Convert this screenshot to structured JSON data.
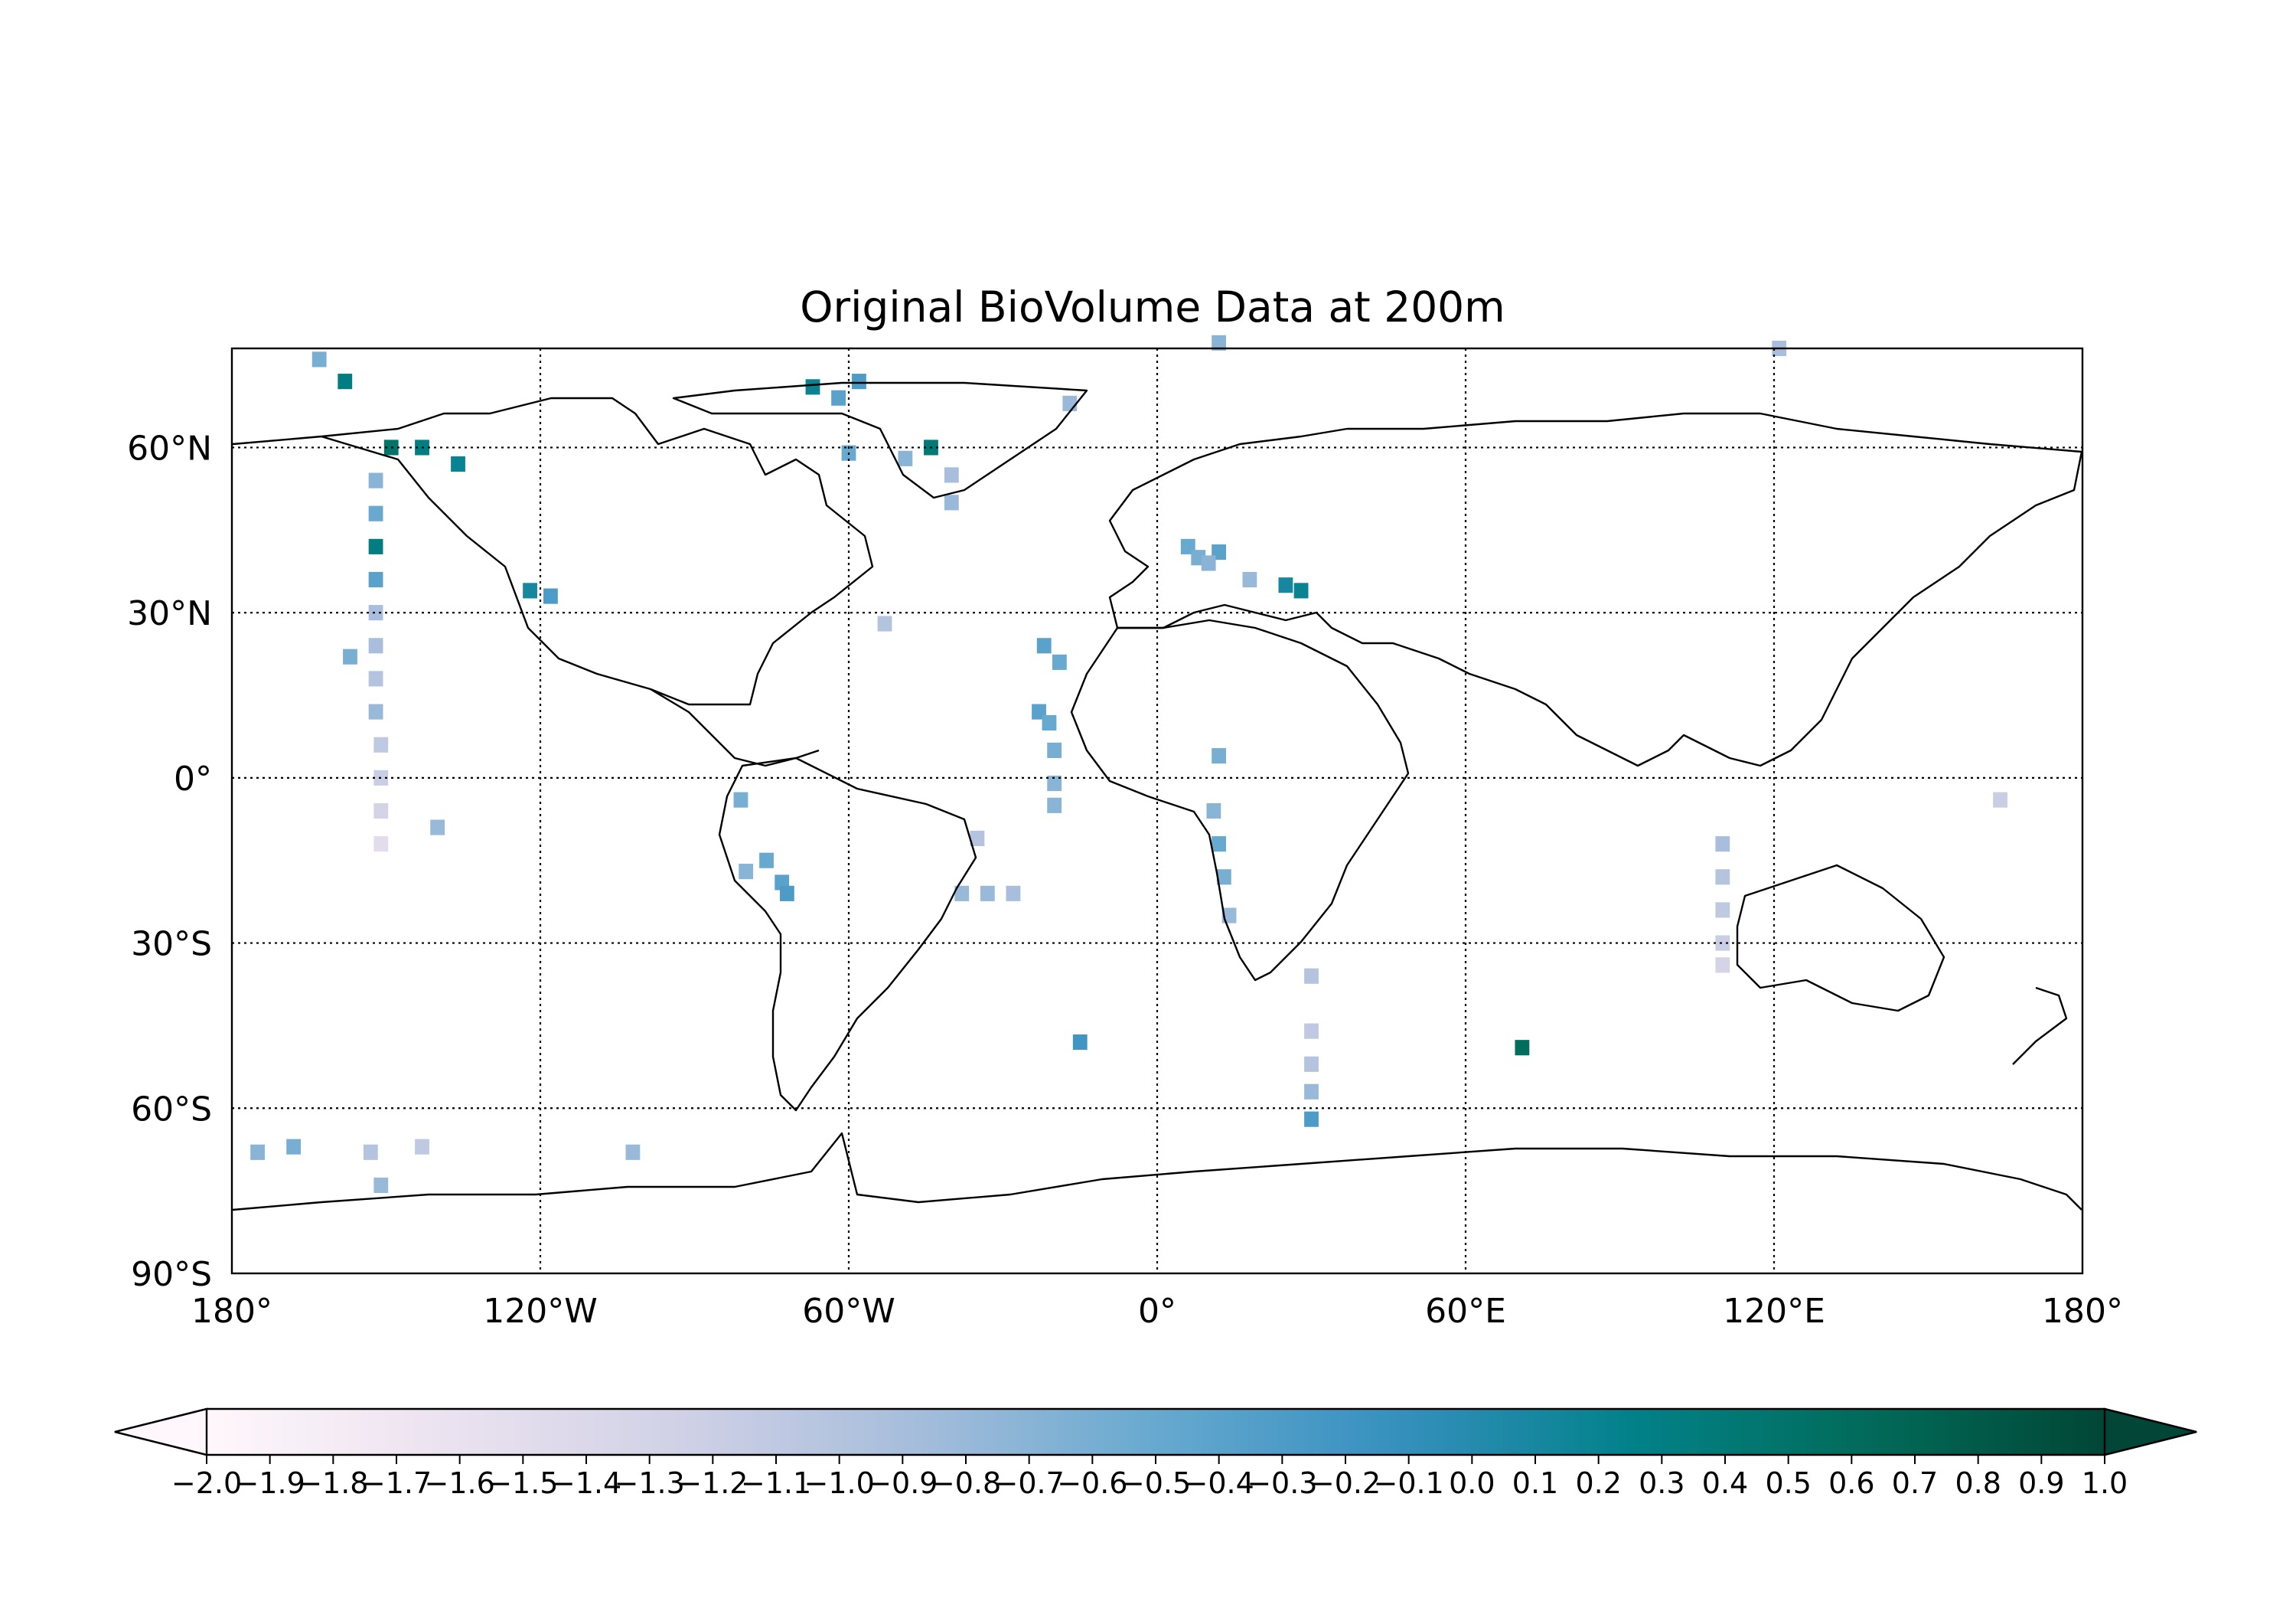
{
  "title": "Original BioVolume Data at 200m",
  "map": {
    "projection": "Plate Carree",
    "lon_range": [
      -180,
      180
    ],
    "lat_range": [
      -90,
      90
    ],
    "gridline_style": "dotted",
    "coastlines": true,
    "country_borders": true
  },
  "axes": {
    "x_ticks": [
      {
        "value": -180,
        "label": "180°"
      },
      {
        "value": -120,
        "label": "120°W"
      },
      {
        "value": -60,
        "label": "60°W"
      },
      {
        "value": 0,
        "label": "0°"
      },
      {
        "value": 60,
        "label": "60°E"
      },
      {
        "value": 120,
        "label": "120°E"
      },
      {
        "value": 180,
        "label": "180°"
      }
    ],
    "y_ticks": [
      {
        "value": 60,
        "label": "60°N"
      },
      {
        "value": 30,
        "label": "30°N"
      },
      {
        "value": 0,
        "label": "0°"
      },
      {
        "value": -30,
        "label": "30°S"
      },
      {
        "value": -60,
        "label": "60°S"
      },
      {
        "value": -90,
        "label": "90°S"
      }
    ]
  },
  "colorbar": {
    "colormap": "PuBuGn",
    "colors": [
      "#fff7fb",
      "#ece2f0",
      "#d0d1e6",
      "#a6bddb",
      "#67a9cf",
      "#3690c0",
      "#02818a",
      "#016c59",
      "#014636"
    ],
    "min": -2.0,
    "max": 1.0,
    "extend": "both",
    "orientation": "horizontal",
    "tick_labels": [
      "−2.0",
      "−1.9",
      "−1.8",
      "−1.7",
      "−1.6",
      "−1.5",
      "−1.4",
      "−1.3",
      "−1.2",
      "−1.1",
      "−1.0",
      "−0.9",
      "−0.8",
      "−0.7",
      "−0.6",
      "−0.5",
      "−0.4",
      "−0.3",
      "−0.2",
      "−0.1",
      "0.0",
      "0.1",
      "0.2",
      "0.3",
      "0.4",
      "0.5",
      "0.6",
      "0.7",
      "0.8",
      "0.9",
      "1.0"
    ]
  },
  "chart_data": {
    "type": "heatmap",
    "title": "Original BioVolume Data at 200m",
    "xlabel": "",
    "ylabel": "",
    "xlim": [
      -180,
      180
    ],
    "ylim": [
      -90,
      90
    ],
    "value_range": [
      -2.0,
      1.0
    ],
    "grid": true,
    "cells": [
      {
        "lon": -163,
        "lat": 76,
        "value": -0.6
      },
      {
        "lon": -158,
        "lat": 72,
        "value": 0.3
      },
      {
        "lon": -149,
        "lat": 60,
        "value": 0.5
      },
      {
        "lon": -143,
        "lat": 60,
        "value": 0.3
      },
      {
        "lon": -136,
        "lat": 57,
        "value": 0.2
      },
      {
        "lon": -152,
        "lat": 54,
        "value": -0.7
      },
      {
        "lon": -152,
        "lat": 48,
        "value": -0.5
      },
      {
        "lon": -152,
        "lat": 42,
        "value": 0.3
      },
      {
        "lon": -152,
        "lat": 36,
        "value": -0.4
      },
      {
        "lon": -152,
        "lat": 30,
        "value": -0.9
      },
      {
        "lon": -152,
        "lat": 24,
        "value": -0.9
      },
      {
        "lon": -152,
        "lat": 18,
        "value": -1.0
      },
      {
        "lon": -152,
        "lat": 12,
        "value": -0.8
      },
      {
        "lon": -151,
        "lat": 6,
        "value": -1.1
      },
      {
        "lon": -151,
        "lat": 0,
        "value": -1.2
      },
      {
        "lon": -151,
        "lat": -6,
        "value": -1.3
      },
      {
        "lon": -151,
        "lat": -12,
        "value": -1.5
      },
      {
        "lon": -157,
        "lat": 22,
        "value": -0.6
      },
      {
        "lon": -122,
        "lat": 34,
        "value": 0.1
      },
      {
        "lon": -118,
        "lat": 33,
        "value": -0.3
      },
      {
        "lon": -67,
        "lat": 71,
        "value": 0.2
      },
      {
        "lon": -62,
        "lat": 69,
        "value": -0.4
      },
      {
        "lon": -58,
        "lat": 72,
        "value": -0.3
      },
      {
        "lon": -44,
        "lat": 60,
        "value": 0.4
      },
      {
        "lon": -49,
        "lat": 58,
        "value": -0.7
      },
      {
        "lon": -40,
        "lat": 55,
        "value": -0.9
      },
      {
        "lon": -40,
        "lat": 50,
        "value": -0.8
      },
      {
        "lon": -60,
        "lat": 59,
        "value": -0.5
      },
      {
        "lon": -17,
        "lat": 68,
        "value": -0.8
      },
      {
        "lon": -22,
        "lat": 24,
        "value": -0.4
      },
      {
        "lon": -19,
        "lat": 21,
        "value": -0.5
      },
      {
        "lon": -23,
        "lat": 12,
        "value": -0.4
      },
      {
        "lon": -21,
        "lat": 10,
        "value": -0.5
      },
      {
        "lon": -20,
        "lat": 5,
        "value": -0.6
      },
      {
        "lon": -20,
        "lat": -1,
        "value": -0.7
      },
      {
        "lon": -20,
        "lat": -5,
        "value": -0.7
      },
      {
        "lon": -53,
        "lat": 28,
        "value": -1.0
      },
      {
        "lon": -76,
        "lat": -15,
        "value": -0.5
      },
      {
        "lon": -73,
        "lat": -19,
        "value": -0.4
      },
      {
        "lon": -72,
        "lat": -21,
        "value": -0.3
      },
      {
        "lon": -80,
        "lat": -17,
        "value": -0.7
      },
      {
        "lon": -81,
        "lat": -4,
        "value": -0.6
      },
      {
        "lon": -38,
        "lat": -21,
        "value": -0.8
      },
      {
        "lon": -33,
        "lat": -21,
        "value": -0.8
      },
      {
        "lon": -28,
        "lat": -21,
        "value": -0.9
      },
      {
        "lon": -35,
        "lat": -11,
        "value": -1.0
      },
      {
        "lon": -140,
        "lat": -9,
        "value": -0.8
      },
      {
        "lon": 6,
        "lat": 42,
        "value": -0.5
      },
      {
        "lon": 8,
        "lat": 40,
        "value": -0.6
      },
      {
        "lon": 12,
        "lat": 41,
        "value": -0.4
      },
      {
        "lon": 10,
        "lat": 39,
        "value": -0.7
      },
      {
        "lon": 18,
        "lat": 36,
        "value": -0.8
      },
      {
        "lon": 25,
        "lat": 35,
        "value": 0.1
      },
      {
        "lon": 28,
        "lat": 34,
        "value": 0.2
      },
      {
        "lon": 12,
        "lat": 4,
        "value": -0.6
      },
      {
        "lon": 11,
        "lat": -6,
        "value": -0.7
      },
      {
        "lon": 12,
        "lat": -12,
        "value": -0.5
      },
      {
        "lon": 13,
        "lat": -18,
        "value": -0.6
      },
      {
        "lon": 14,
        "lat": -25,
        "value": -0.8
      },
      {
        "lon": 30,
        "lat": -36,
        "value": -1.0
      },
      {
        "lon": 30,
        "lat": -46,
        "value": -1.1
      },
      {
        "lon": 30,
        "lat": -52,
        "value": -1.0
      },
      {
        "lon": 30,
        "lat": -57,
        "value": -0.8
      },
      {
        "lon": 30,
        "lat": -62,
        "value": -0.3
      },
      {
        "lon": 71,
        "lat": -49,
        "value": 0.6
      },
      {
        "lon": -15,
        "lat": -48,
        "value": -0.2
      },
      {
        "lon": 110,
        "lat": -12,
        "value": -0.9
      },
      {
        "lon": 110,
        "lat": -18,
        "value": -1.0
      },
      {
        "lon": 110,
        "lat": -24,
        "value": -1.1
      },
      {
        "lon": 110,
        "lat": -30,
        "value": -1.2
      },
      {
        "lon": 110,
        "lat": -34,
        "value": -1.3
      },
      {
        "lon": 164,
        "lat": -4,
        "value": -1.2
      },
      {
        "lon": 121,
        "lat": 78,
        "value": -0.9
      },
      {
        "lon": 12,
        "lat": 79,
        "value": -0.7
      },
      {
        "lon": -175,
        "lat": -68,
        "value": -0.7
      },
      {
        "lon": -168,
        "lat": -67,
        "value": -0.6
      },
      {
        "lon": -153,
        "lat": -68,
        "value": -1.0
      },
      {
        "lon": -151,
        "lat": -74,
        "value": -0.8
      },
      {
        "lon": -143,
        "lat": -67,
        "value": -1.1
      },
      {
        "lon": -102,
        "lat": -68,
        "value": -0.8
      }
    ]
  }
}
